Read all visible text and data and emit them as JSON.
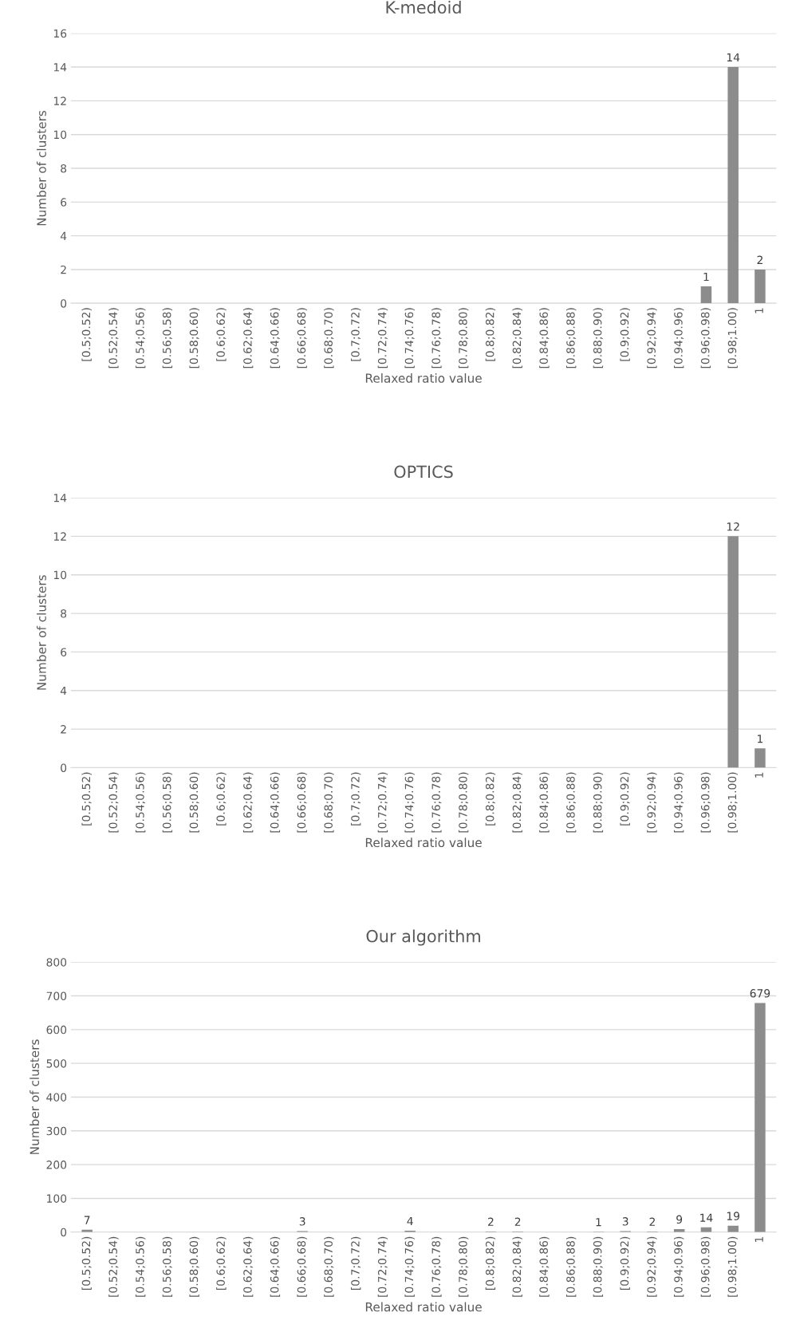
{
  "chart_data": [
    {
      "type": "bar",
      "title": "K-medoid",
      "xlabel": "Relaxed ratio value",
      "ylabel": "Number of clusters",
      "color": "#8c8c8c",
      "grid": "y",
      "ylim": [
        0,
        16
      ],
      "yticks": [
        0,
        2,
        4,
        6,
        8,
        10,
        12,
        14,
        16
      ],
      "categories": [
        "[0.5;0.52)",
        "[0.52;0.54)",
        "[0.54;0.56)",
        "[0.56;0.58)",
        "[0.58;0.60)",
        "[0.6;0.62)",
        "[0.62;0.64)",
        "[0.64;0.66)",
        "[0.66;0.68)",
        "[0.68;0.70)",
        "[0.7;0.72)",
        "[0.72;0.74)",
        "[0.74;0.76)",
        "[0.76;0.78)",
        "[0.78;0.80)",
        "[0.8;0.82)",
        "[0.82;0.84)",
        "[0.84;0.86)",
        "[0.86;0.88)",
        "[0.88;0.90)",
        "[0.9;0.92)",
        "[0.92;0.94)",
        "[0.94;0.96)",
        "[0.96;0.98)",
        "[0.98;1.00)",
        "1"
      ],
      "values": [
        0,
        0,
        0,
        0,
        0,
        0,
        0,
        0,
        0,
        0,
        0,
        0,
        0,
        0,
        0,
        0,
        0,
        0,
        0,
        0,
        0,
        0,
        0,
        1,
        14,
        2
      ],
      "value_labels": [
        null,
        null,
        null,
        null,
        null,
        null,
        null,
        null,
        null,
        null,
        null,
        null,
        null,
        null,
        null,
        null,
        null,
        null,
        null,
        null,
        null,
        null,
        null,
        "1",
        "14",
        "2"
      ]
    },
    {
      "type": "bar",
      "title": "OPTICS",
      "xlabel": "Relaxed ratio value",
      "ylabel": "Number of clusters",
      "color": "#8c8c8c",
      "grid": "y",
      "ylim": [
        0,
        14
      ],
      "yticks": [
        0,
        2,
        4,
        6,
        8,
        10,
        12,
        14
      ],
      "categories": [
        "[0.5;0.52)",
        "[0.52;0.54)",
        "[0.54;0.56)",
        "[0.56;0.58)",
        "[0.58;0.60)",
        "[0.6;0.62)",
        "[0.62;0.64)",
        "[0.64;0.66)",
        "[0.66;0.68)",
        "[0.68;0.70)",
        "[0.7;0.72)",
        "[0.72;0.74)",
        "[0.74;0.76)",
        "[0.76;0.78)",
        "[0.78;0.80)",
        "[0.8;0.82)",
        "[0.82;0.84)",
        "[0.84;0.86)",
        "[0.86;0.88)",
        "[0.88;0.90)",
        "[0.9;0.92)",
        "[0.92;0.94)",
        "[0.94;0.96)",
        "[0.96;0.98)",
        "[0.98;1.00)",
        "1"
      ],
      "values": [
        0,
        0,
        0,
        0,
        0,
        0,
        0,
        0,
        0,
        0,
        0,
        0,
        0,
        0,
        0,
        0,
        0,
        0,
        0,
        0,
        0,
        0,
        0,
        0,
        12,
        1
      ],
      "value_labels": [
        null,
        null,
        null,
        null,
        null,
        null,
        null,
        null,
        null,
        null,
        null,
        null,
        null,
        null,
        null,
        null,
        null,
        null,
        null,
        null,
        null,
        null,
        null,
        null,
        "12",
        "1"
      ]
    },
    {
      "type": "bar",
      "title": "Our algorithm",
      "xlabel": "Relaxed ratio value",
      "ylabel": "Number of clusters",
      "color": "#8c8c8c",
      "grid": "y",
      "ylim": [
        0,
        800
      ],
      "yticks": [
        0,
        100,
        200,
        300,
        400,
        500,
        600,
        700,
        800
      ],
      "categories": [
        "[0.5;0.52)",
        "[0.52;0.54)",
        "[0.54;0.56)",
        "[0.56;0.58)",
        "[0.58;0.60)",
        "[0.6;0.62)",
        "[0.62;0.64)",
        "[0.64;0.66)",
        "[0.66;0.68)",
        "[0.68;0.70)",
        "[0.7;0.72)",
        "[0.72;0.74)",
        "[0.74;0.76)",
        "[0.76;0.78)",
        "[0.78;0.80)",
        "[0.8;0.82)",
        "[0.82;0.84)",
        "[0.84;0.86)",
        "[0.86;0.88)",
        "[0.88;0.90)",
        "[0.9;0.92)",
        "[0.92;0.94)",
        "[0.94;0.96)",
        "[0.96;0.98)",
        "[0.98;1.00)",
        "1"
      ],
      "values": [
        7,
        0,
        0,
        0,
        0,
        0,
        0,
        0,
        3,
        0,
        0,
        0,
        4,
        0,
        0,
        2,
        2,
        0,
        0,
        1,
        3,
        2,
        9,
        14,
        19,
        679
      ],
      "value_labels": [
        "7",
        null,
        null,
        null,
        null,
        null,
        null,
        null,
        "3",
        null,
        null,
        null,
        "4",
        null,
        null,
        "2",
        "2",
        null,
        null,
        "1",
        "3",
        "2",
        "9",
        "14",
        "19",
        "679"
      ]
    }
  ]
}
